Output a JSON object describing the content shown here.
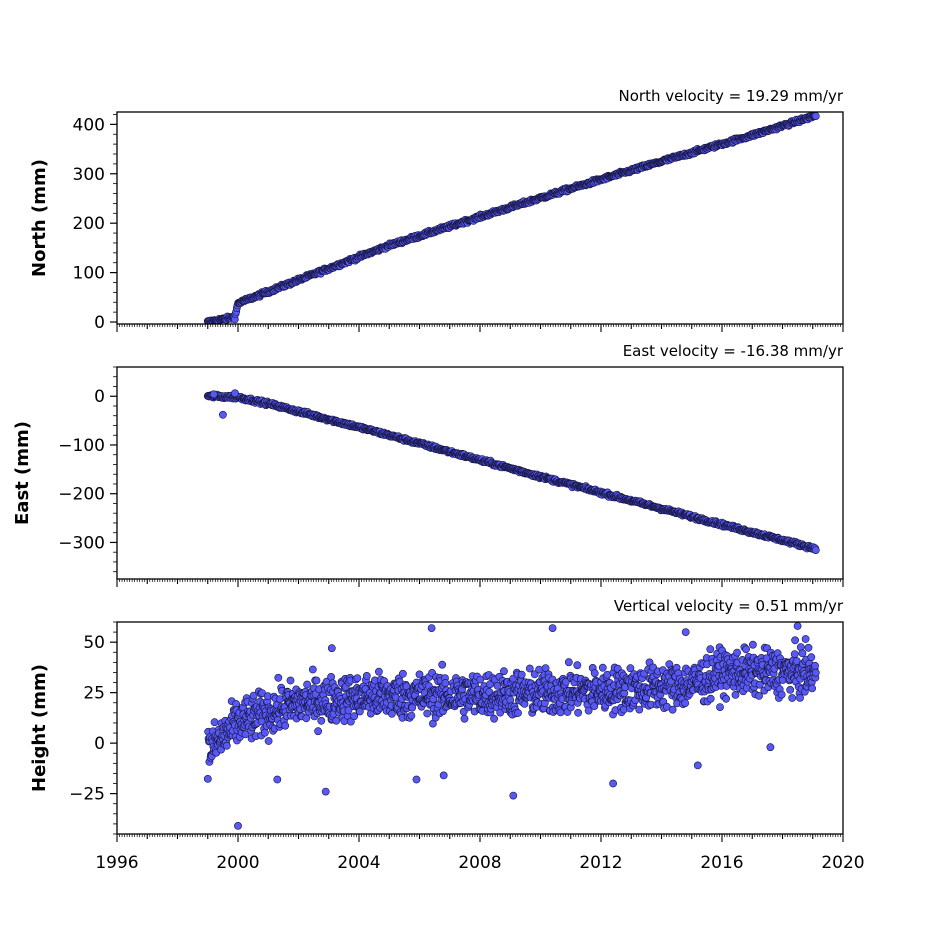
{
  "chart_data": {
    "type": "scatter",
    "x_range": [
      1996,
      2020
    ],
    "x_ticks": [
      1996,
      2000,
      2004,
      2008,
      2012,
      2016,
      2020
    ],
    "x_ticks_labels": [
      "1996",
      "2000",
      "2004",
      "2008",
      "2012",
      "2016",
      "2020"
    ],
    "marker_color": "#5858f5",
    "marker_edge_color": "#14143c",
    "series_start": 1999.0,
    "series_end": 2019.1,
    "panels": [
      {
        "id": "north",
        "title": "North velocity = 19.29 mm/yr",
        "ylabel": "North (mm)",
        "ylim": [
          -4,
          425
        ],
        "yticks": [
          0,
          100,
          200,
          300,
          400
        ],
        "ytick_labels": [
          "0",
          "100",
          "200",
          "300",
          "400"
        ],
        "velocity": 19.29,
        "anchors": [
          [
            1999.0,
            0
          ],
          [
            1999.9,
            10
          ],
          [
            2000.0,
            38
          ],
          [
            2002.0,
            85
          ],
          [
            2005.0,
            155
          ],
          [
            2008.0,
            213
          ],
          [
            2011.0,
            270
          ],
          [
            2014.0,
            325
          ],
          [
            2017.0,
            378
          ],
          [
            2019.1,
            418
          ]
        ],
        "noise": 2.5
      },
      {
        "id": "east",
        "title": "East velocity = -16.38 mm/yr",
        "ylabel": "East (mm)",
        "ylim": [
          -375,
          60
        ],
        "yticks": [
          -300,
          -200,
          -100,
          0
        ],
        "ytick_labels": [
          "−300",
          "−200",
          "−100",
          "0"
        ],
        "velocity": -16.38,
        "anchors": [
          [
            1999.0,
            0
          ],
          [
            2000.0,
            -2
          ],
          [
            2001.0,
            -15
          ],
          [
            2005.0,
            -80
          ],
          [
            2010.0,
            -165
          ],
          [
            2015.0,
            -247
          ],
          [
            2019.1,
            -313
          ]
        ],
        "noise": 2.5,
        "outliers": [
          [
            1999.5,
            -38
          ],
          [
            1999.2,
            4
          ],
          [
            1999.9,
            6
          ]
        ]
      },
      {
        "id": "height",
        "title": "Vertical velocity = 0.51 mm/yr",
        "ylabel": "Height (mm)",
        "ylim": [
          -45,
          60
        ],
        "yticks": [
          -25,
          0,
          25,
          50
        ],
        "ytick_labels": [
          "−25",
          "0",
          "25",
          "50"
        ],
        "velocity": 0.51,
        "anchors": [
          [
            1999.0,
            -4
          ],
          [
            2000.0,
            10
          ],
          [
            2002.0,
            20
          ],
          [
            2004.0,
            23
          ],
          [
            2008.0,
            24
          ],
          [
            2012.0,
            26
          ],
          [
            2015.0,
            29
          ],
          [
            2016.0,
            35
          ],
          [
            2019.1,
            35
          ]
        ],
        "noise": 8,
        "outliers": [
          [
            2000.0,
            -41
          ],
          [
            2006.4,
            57
          ],
          [
            2009.1,
            -26
          ],
          [
            2002.9,
            -24
          ],
          [
            2003.1,
            47
          ],
          [
            2015.2,
            -11
          ],
          [
            2018.5,
            58
          ],
          [
            2017.6,
            -2
          ],
          [
            2005.9,
            -18
          ],
          [
            2006.8,
            -16
          ],
          [
            2010.4,
            57
          ],
          [
            2012.4,
            -20
          ],
          [
            2014.8,
            55
          ],
          [
            2001.3,
            -18
          ]
        ]
      }
    ]
  }
}
